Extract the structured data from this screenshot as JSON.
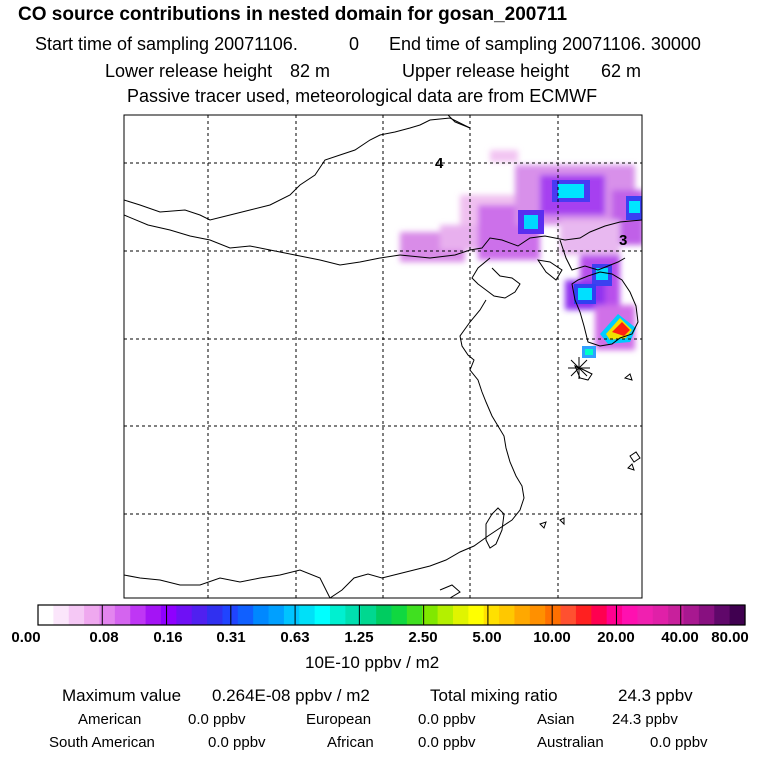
{
  "header": {
    "title": "CO  source contributions in nested domain for gosan_200711",
    "start_label": "Start time of sampling 20071106.",
    "start_value": "0",
    "end_label": "End time of sampling 20071106. 30000",
    "lower_label": "Lower release height",
    "lower_value": "82 m",
    "upper_label": "Upper release height",
    "upper_value": "62 m",
    "note": "Passive tracer used, meteorological data are from ECMWF"
  },
  "map": {
    "labels": [
      "4",
      "3"
    ],
    "receptor_marker": "star-marker"
  },
  "colorbar": {
    "tick_labels": [
      "0.00",
      "0.08",
      "0.16",
      "0.31",
      "0.63",
      "1.25",
      "2.50",
      "5.00",
      "10.00",
      "20.00",
      "40.00",
      "80.00"
    ],
    "units": "10E-10 ppbv / m2",
    "colors": [
      "#ffffff",
      "#fbe6fb",
      "#f5c8f5",
      "#efa8ef",
      "#e385ef",
      "#d464ef",
      "#bf36f5",
      "#a414f5",
      "#8f00ff",
      "#6f10f5",
      "#5020f0",
      "#3030f0",
      "#2044ff",
      "#1060ff",
      "#0088ff",
      "#00a0ff",
      "#00c4ff",
      "#00e0f8",
      "#00ffff",
      "#00f0d0",
      "#00e0b0",
      "#00d890",
      "#00cc60",
      "#10d840",
      "#40e020",
      "#80e800",
      "#b4f000",
      "#e0f400",
      "#ffff00",
      "#ffe000",
      "#ffc800",
      "#ffa800",
      "#ff9000",
      "#ff7000",
      "#ff5030",
      "#ff2020",
      "#ff0050",
      "#ff0090",
      "#ff10b0",
      "#f020b0",
      "#e020a8",
      "#c8209c",
      "#a81890",
      "#881080",
      "#60086a",
      "#400050"
    ]
  },
  "stats": {
    "max_label": "Maximum value",
    "max_value": "0.264E-08 ppbv / m2",
    "total_label": "Total mixing ratio",
    "total_value": "24.3 ppbv",
    "regions": [
      {
        "name": "American",
        "value": "0.0 ppbv"
      },
      {
        "name": "European",
        "value": "0.0 ppbv"
      },
      {
        "name": "Asian",
        "value": "24.3 ppbv"
      },
      {
        "name": "South American",
        "value": "0.0 ppbv"
      },
      {
        "name": "African",
        "value": "0.0 ppbv"
      },
      {
        "name": "Australian",
        "value": "0.0 ppbv"
      }
    ]
  }
}
